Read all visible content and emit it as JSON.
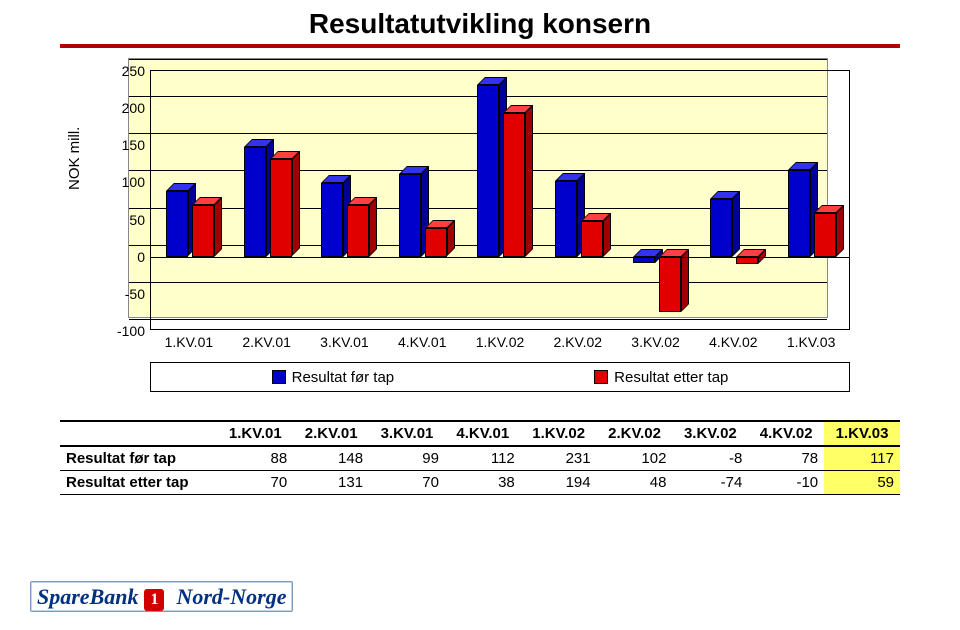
{
  "title": "Resultatutvikling konsern",
  "ylabel": "NOK mill.",
  "chart": {
    "type": "bar",
    "background_color": "#ffffcc",
    "series": [
      {
        "name": "Resultat før tap",
        "color": "#0000cc",
        "color_top": "#3333ee",
        "color_side": "#000099"
      },
      {
        "name": "Resultat etter tap",
        "color": "#e00000",
        "color_top": "#ff4040",
        "color_side": "#a00000"
      }
    ],
    "categories": [
      "1.KV.01",
      "2.KV.01",
      "3.KV.01",
      "4.KV.01",
      "1.KV.02",
      "2.KV.02",
      "3.KV.02",
      "4.KV.02",
      "1.KV.03"
    ],
    "values": [
      [
        88,
        148,
        99,
        112,
        231,
        102,
        -8,
        78,
        117
      ],
      [
        70,
        131,
        70,
        38,
        194,
        48,
        -74,
        -10,
        59
      ]
    ],
    "ylim": [
      -100,
      250
    ],
    "ytick_step": 50
  },
  "table": {
    "row_labels": [
      "Resultat før tap",
      "Resultat etter tap"
    ],
    "columns": [
      "1.KV.01",
      "2.KV.01",
      "3.KV.01",
      "4.KV.01",
      "1.KV.02",
      "2.KV.02",
      "3.KV.02",
      "4.KV.02",
      "1.KV.03"
    ],
    "rows": [
      [
        88,
        148,
        99,
        112,
        231,
        102,
        -8,
        78,
        117
      ],
      [
        70,
        131,
        70,
        38,
        194,
        48,
        -74,
        -10,
        59
      ]
    ],
    "highlight_last_col": true
  },
  "logo": {
    "text1": "SpareBank",
    "text2": "Nord-Norge",
    "badge": "1"
  }
}
